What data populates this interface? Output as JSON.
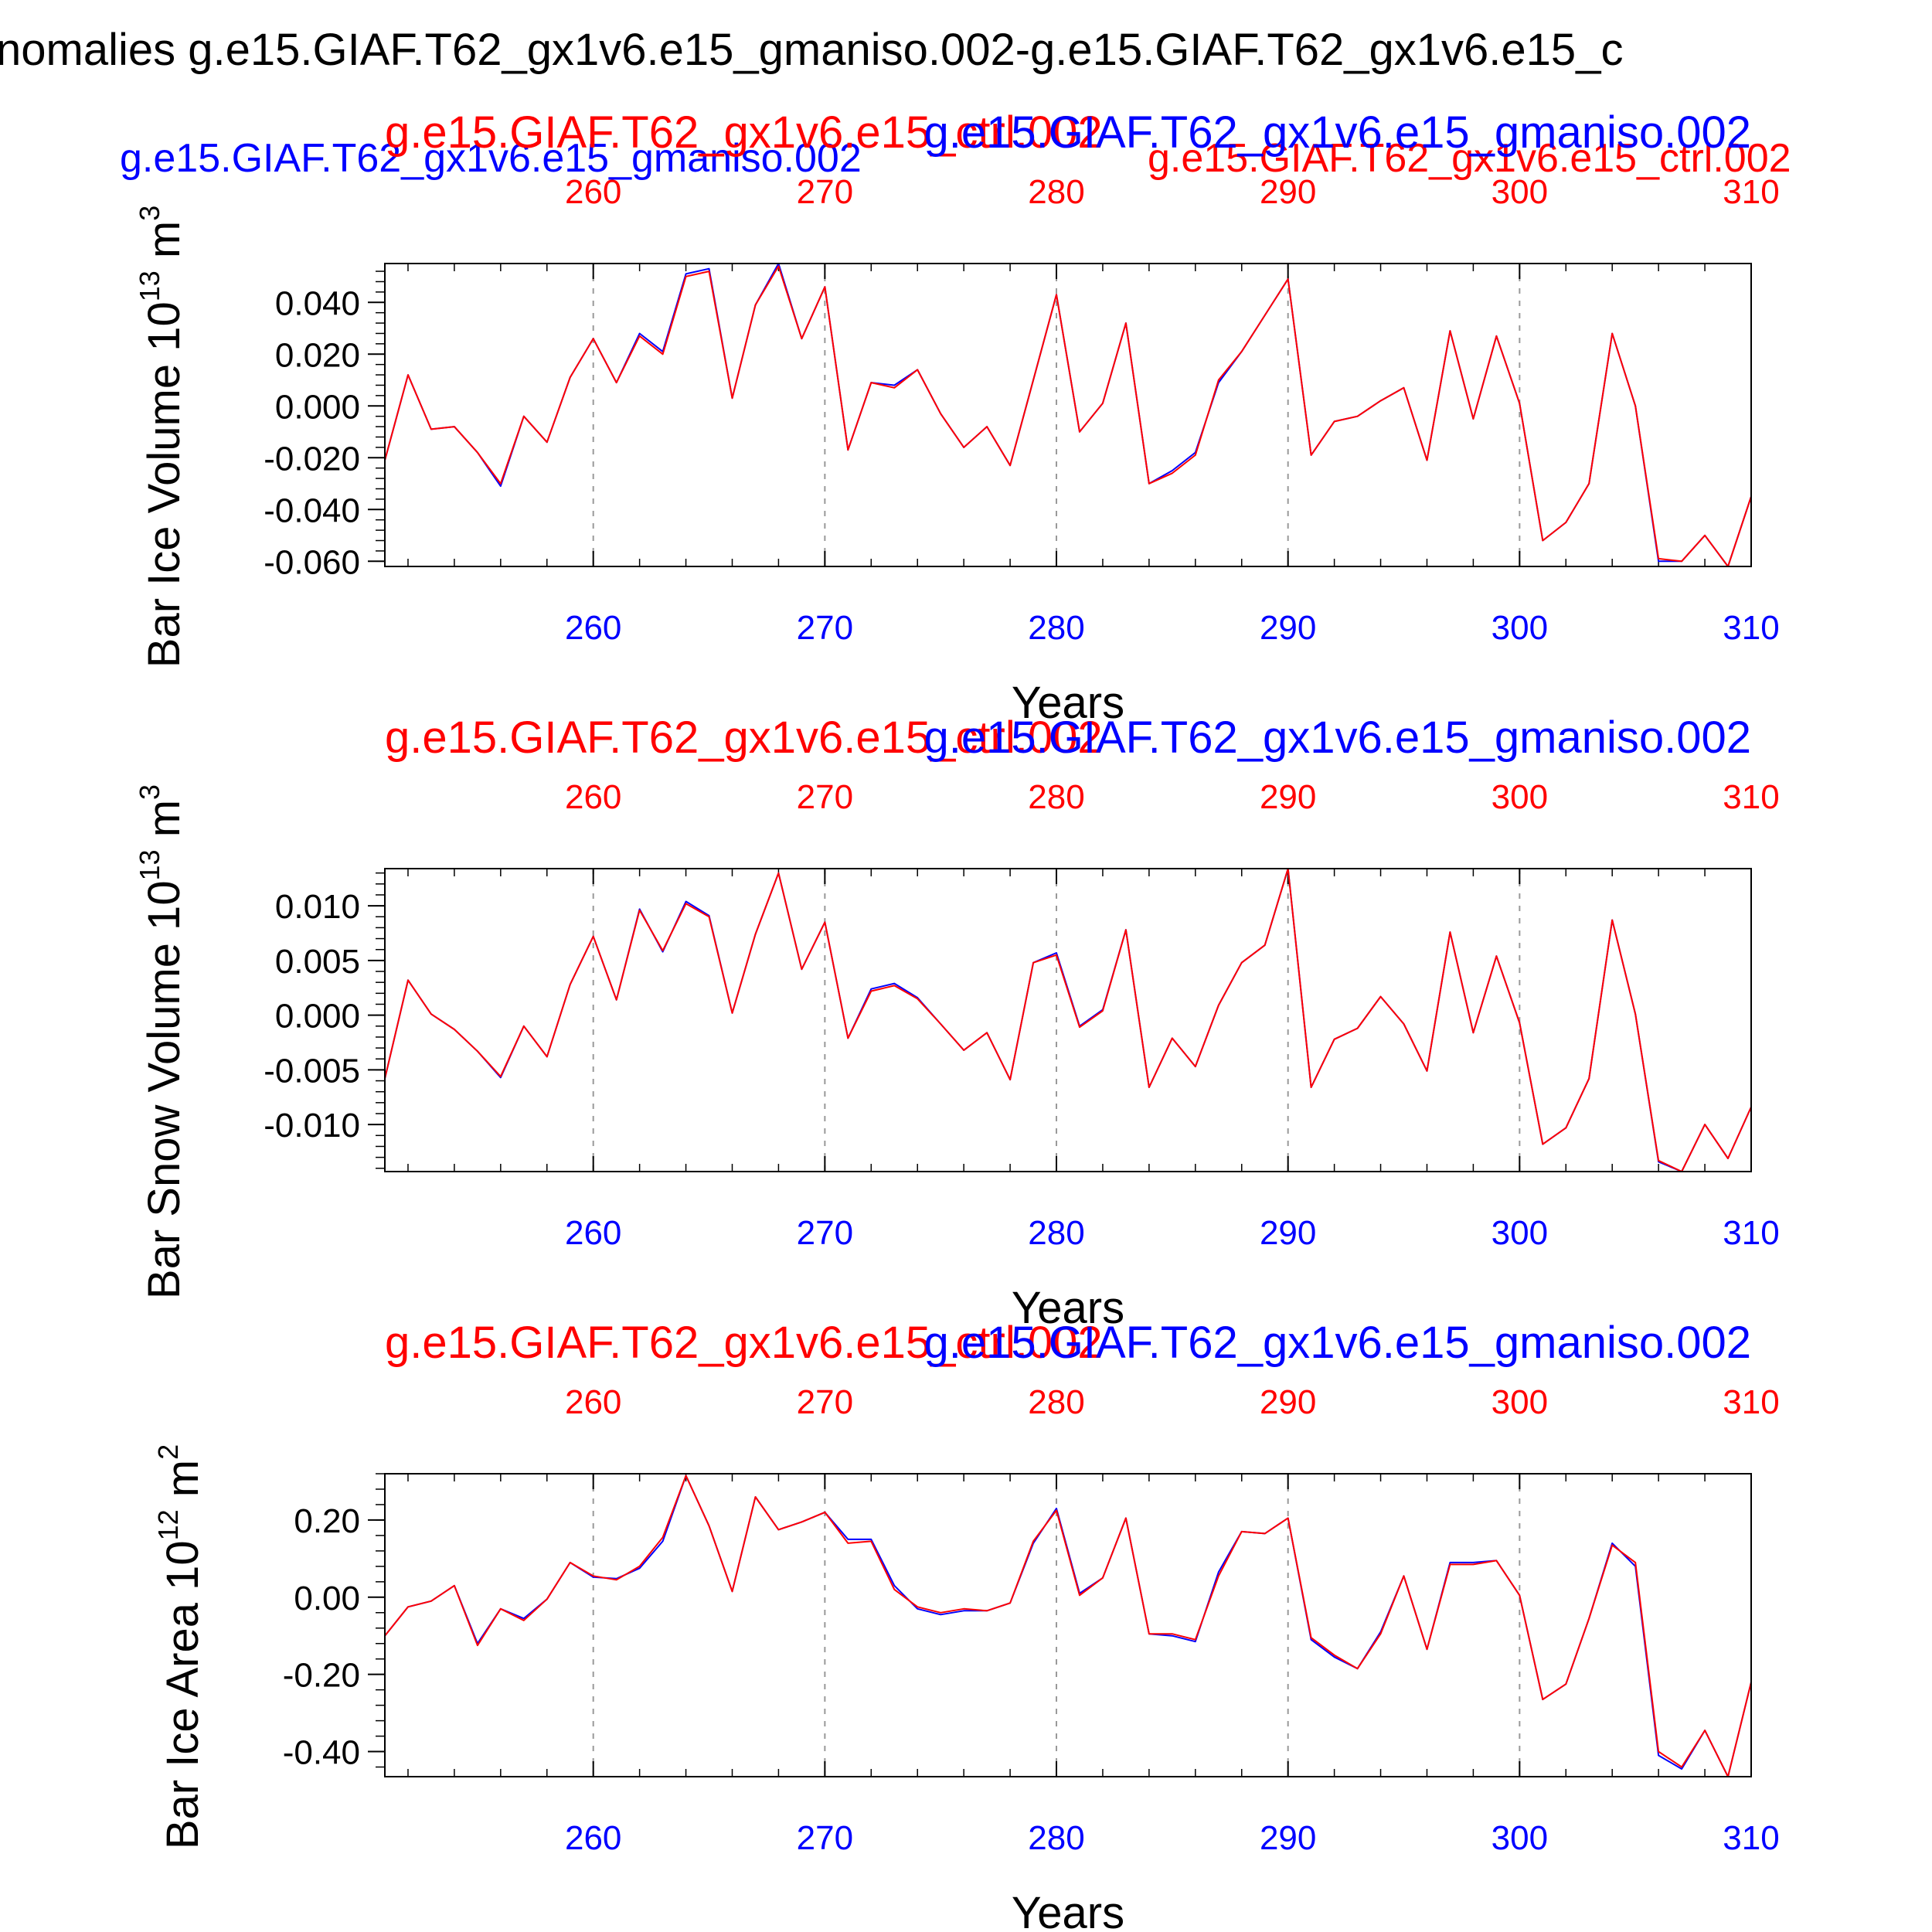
{
  "figure_title": "nomalies g.e15.GIAF.T62_gx1v6.e15_gmaniso.002-g.e15.GIAF.T62_gx1v6.e15_c",
  "legend_top": {
    "blue": "g.e15.GIAF.T62_gx1v6.e15_gmaniso.002",
    "red": "g.e15.GIAF.T62_gx1v6.e15_ctrl.002"
  },
  "colors": {
    "series_a": "#0000ff",
    "series_b": "#ff0000",
    "axis": "#000000",
    "grid": "#999999"
  },
  "chart_data": [
    {
      "type": "line",
      "ylabel": "Bar Ice Volume 10",
      "ylabel_exp": "13",
      "ylabel_unit": " m",
      "ylabel_unit_exp": "3",
      "xlabel": "Years",
      "top_label_red": "g.e15.GIAF.T62_gx1v6.e15_ctrl.002",
      "top_label_blue": "g.e15.GIAF.T62_gx1v6.e15_gmaniso.002",
      "xlim": [
        251,
        310
      ],
      "ylim": [
        -0.062,
        0.055
      ],
      "yticks": [
        -0.06,
        -0.04,
        -0.02,
        0.0,
        0.02,
        0.04
      ],
      "ytick_labels": [
        "-0.060",
        "-0.040",
        "-0.020",
        "0.000",
        "0.020",
        "0.040"
      ],
      "xticks": [
        260,
        270,
        280,
        290,
        300,
        310
      ],
      "xtick_labels": [
        "260",
        "270",
        "280",
        "290",
        "300",
        "310"
      ],
      "grid_x": [
        260,
        270,
        280,
        290,
        300
      ],
      "x": [
        251,
        252,
        253,
        254,
        255,
        256,
        257,
        258,
        259,
        260,
        261,
        262,
        263,
        264,
        265,
        266,
        267,
        268,
        269,
        270,
        271,
        272,
        273,
        274,
        275,
        276,
        277,
        278,
        279,
        280,
        281,
        282,
        283,
        284,
        285,
        286,
        287,
        288,
        289,
        290,
        291,
        292,
        293,
        294,
        295,
        296,
        297,
        298,
        299,
        300,
        301,
        302,
        303,
        304,
        305,
        306,
        307,
        308,
        309,
        310
      ],
      "series": [
        {
          "values": [
            -0.021,
            0.012,
            -0.009,
            -0.008,
            -0.018,
            -0.031,
            -0.004,
            -0.014,
            0.011,
            0.026,
            0.009,
            0.028,
            0.021,
            0.051,
            0.053,
            0.003,
            0.039,
            0.055,
            0.026,
            0.046,
            -0.017,
            0.009,
            0.008,
            0.014,
            -0.003,
            -0.016,
            -0.008,
            -0.023,
            0.01,
            0.043,
            -0.01,
            0.001,
            0.032,
            -0.03,
            -0.025,
            -0.018,
            0.009,
            0.021,
            0.035,
            0.049,
            -0.019,
            -0.006,
            -0.004,
            0.002,
            0.007,
            -0.021,
            0.029,
            -0.005,
            0.027,
            0.001,
            -0.052,
            -0.045,
            -0.03,
            0.028,
            0.0,
            -0.06,
            -0.06,
            -0.05,
            -0.062,
            -0.035
          ]
        },
        {
          "values": [
            -0.021,
            0.012,
            -0.009,
            -0.008,
            -0.018,
            -0.03,
            -0.004,
            -0.014,
            0.011,
            0.026,
            0.009,
            0.027,
            0.02,
            0.05,
            0.052,
            0.003,
            0.039,
            0.054,
            0.026,
            0.046,
            -0.017,
            0.009,
            0.007,
            0.014,
            -0.003,
            -0.016,
            -0.008,
            -0.023,
            0.01,
            0.043,
            -0.01,
            0.001,
            0.032,
            -0.03,
            -0.026,
            -0.019,
            0.01,
            0.021,
            0.035,
            0.049,
            -0.019,
            -0.006,
            -0.004,
            0.002,
            0.007,
            -0.021,
            0.029,
            -0.005,
            0.027,
            0.001,
            -0.052,
            -0.045,
            -0.03,
            0.028,
            0.0,
            -0.059,
            -0.06,
            -0.05,
            -0.062,
            -0.035
          ]
        }
      ]
    },
    {
      "type": "line",
      "ylabel": "Bar Snow Volume 10",
      "ylabel_exp": "13",
      "ylabel_unit": " m",
      "ylabel_unit_exp": "3",
      "xlabel": "Years",
      "top_label_red": "g.e15.GIAF.T62_gx1v6.e15_ctrl.002",
      "top_label_blue": "g.e15.GIAF.T62_gx1v6.e15_gmaniso.002",
      "xlim": [
        251,
        310
      ],
      "ylim": [
        -0.0143,
        0.0134
      ],
      "yticks": [
        -0.01,
        -0.005,
        0.0,
        0.005,
        0.01
      ],
      "ytick_labels": [
        "-0.010",
        "-0.005",
        "0.000",
        "0.005",
        "0.010"
      ],
      "xticks": [
        260,
        270,
        280,
        290,
        300,
        310
      ],
      "xtick_labels": [
        "260",
        "270",
        "280",
        "290",
        "300",
        "310"
      ],
      "grid_x": [
        260,
        270,
        280,
        290,
        300
      ],
      "x": [
        251,
        252,
        253,
        254,
        255,
        256,
        257,
        258,
        259,
        260,
        261,
        262,
        263,
        264,
        265,
        266,
        267,
        268,
        269,
        270,
        271,
        272,
        273,
        274,
        275,
        276,
        277,
        278,
        279,
        280,
        281,
        282,
        283,
        284,
        285,
        286,
        287,
        288,
        289,
        290,
        291,
        292,
        293,
        294,
        295,
        296,
        297,
        298,
        299,
        300,
        301,
        302,
        303,
        304,
        305,
        306,
        307,
        308,
        309,
        310
      ],
      "series": [
        {
          "values": [
            -0.0058,
            0.0032,
            0.0001,
            -0.0013,
            -0.0033,
            -0.0057,
            -0.001,
            -0.0038,
            0.0028,
            0.0072,
            0.0014,
            0.0097,
            0.0058,
            0.0104,
            0.0091,
            0.0002,
            0.0074,
            0.013,
            0.0042,
            0.0085,
            -0.0021,
            0.0024,
            0.0029,
            0.0016,
            -0.0008,
            -0.0032,
            -0.0016,
            -0.0059,
            0.0048,
            0.0057,
            -0.001,
            0.0005,
            0.0078,
            -0.0066,
            -0.0021,
            -0.0047,
            0.0009,
            0.0048,
            0.0064,
            0.0134,
            -0.0066,
            -0.0022,
            -0.0012,
            0.0017,
            -0.0008,
            -0.0051,
            0.0076,
            -0.0016,
            0.0054,
            -0.0007,
            -0.0118,
            -0.0103,
            -0.0058,
            0.0087,
            0.0001,
            -0.0134,
            -0.0143,
            -0.01,
            -0.0131,
            -0.0084
          ]
        },
        {
          "values": [
            -0.0058,
            0.0032,
            0.0001,
            -0.0013,
            -0.0033,
            -0.0056,
            -0.001,
            -0.0038,
            0.0028,
            0.0072,
            0.0014,
            0.0096,
            0.0059,
            0.0102,
            0.009,
            0.0002,
            0.0074,
            0.013,
            0.0042,
            0.0085,
            -0.0021,
            0.0022,
            0.0027,
            0.0015,
            -0.0008,
            -0.0032,
            -0.0016,
            -0.0059,
            0.0048,
            0.0055,
            -0.0011,
            0.0004,
            0.0078,
            -0.0066,
            -0.0021,
            -0.0047,
            0.0009,
            0.0048,
            0.0064,
            0.0134,
            -0.0066,
            -0.0022,
            -0.0012,
            0.0017,
            -0.0008,
            -0.0051,
            0.0076,
            -0.0016,
            0.0054,
            -0.0007,
            -0.0118,
            -0.0103,
            -0.0058,
            0.0087,
            0.0001,
            -0.0133,
            -0.0143,
            -0.01,
            -0.0131,
            -0.0084
          ]
        }
      ]
    },
    {
      "type": "line",
      "ylabel": "Bar Ice Area 10",
      "ylabel_exp": "12",
      "ylabel_unit": " m",
      "ylabel_unit_exp": "2",
      "xlabel": "Years",
      "top_label_red": "g.e15.GIAF.T62_gx1v6.e15_ctrl.002",
      "top_label_blue": "g.e15.GIAF.T62_gx1v6.e15_gmaniso.002",
      "xlim": [
        251,
        310
      ],
      "ylim": [
        -0.465,
        0.32
      ],
      "yticks": [
        -0.4,
        -0.2,
        0.0,
        0.2
      ],
      "ytick_labels": [
        "-0.40",
        "-0.20",
        "0.00",
        "0.20"
      ],
      "xticks": [
        260,
        270,
        280,
        290,
        300,
        310
      ],
      "xtick_labels": [
        "260",
        "270",
        "280",
        "290",
        "300",
        "310"
      ],
      "grid_x": [
        260,
        270,
        280,
        290,
        300
      ],
      "x": [
        251,
        252,
        253,
        254,
        255,
        256,
        257,
        258,
        259,
        260,
        261,
        262,
        263,
        264,
        265,
        266,
        267,
        268,
        269,
        270,
        271,
        272,
        273,
        274,
        275,
        276,
        277,
        278,
        279,
        280,
        281,
        282,
        283,
        284,
        285,
        286,
        287,
        288,
        289,
        290,
        291,
        292,
        293,
        294,
        295,
        296,
        297,
        298,
        299,
        300,
        301,
        302,
        303,
        304,
        305,
        306,
        307,
        308,
        309,
        310
      ],
      "series": [
        {
          "values": [
            -0.1,
            -0.025,
            -0.01,
            0.03,
            -0.12,
            -0.03,
            -0.055,
            -0.005,
            0.09,
            0.052,
            0.048,
            0.075,
            0.145,
            0.315,
            0.185,
            0.015,
            0.26,
            0.175,
            0.195,
            0.22,
            0.15,
            0.15,
            0.03,
            -0.03,
            -0.045,
            -0.035,
            -0.035,
            -0.015,
            0.14,
            0.23,
            0.01,
            0.05,
            0.205,
            -0.095,
            -0.1,
            -0.115,
            0.065,
            0.17,
            0.165,
            0.205,
            -0.11,
            -0.155,
            -0.185,
            -0.09,
            0.055,
            -0.135,
            0.09,
            0.09,
            0.095,
            0.005,
            -0.265,
            -0.225,
            -0.055,
            0.14,
            0.08,
            -0.41,
            -0.445,
            -0.345,
            -0.465,
            -0.22
          ]
        },
        {
          "values": [
            -0.1,
            -0.025,
            -0.01,
            0.03,
            -0.125,
            -0.03,
            -0.06,
            -0.005,
            0.09,
            0.055,
            0.045,
            0.08,
            0.155,
            0.315,
            0.185,
            0.015,
            0.26,
            0.175,
            0.195,
            0.22,
            0.14,
            0.145,
            0.02,
            -0.025,
            -0.04,
            -0.03,
            -0.035,
            -0.015,
            0.145,
            0.225,
            0.005,
            0.05,
            0.205,
            -0.095,
            -0.095,
            -0.11,
            0.055,
            0.17,
            0.165,
            0.205,
            -0.105,
            -0.15,
            -0.185,
            -0.095,
            0.055,
            -0.135,
            0.085,
            0.085,
            0.095,
            0.005,
            -0.265,
            -0.225,
            -0.055,
            0.135,
            0.09,
            -0.4,
            -0.44,
            -0.345,
            -0.465,
            -0.22
          ]
        }
      ]
    }
  ]
}
